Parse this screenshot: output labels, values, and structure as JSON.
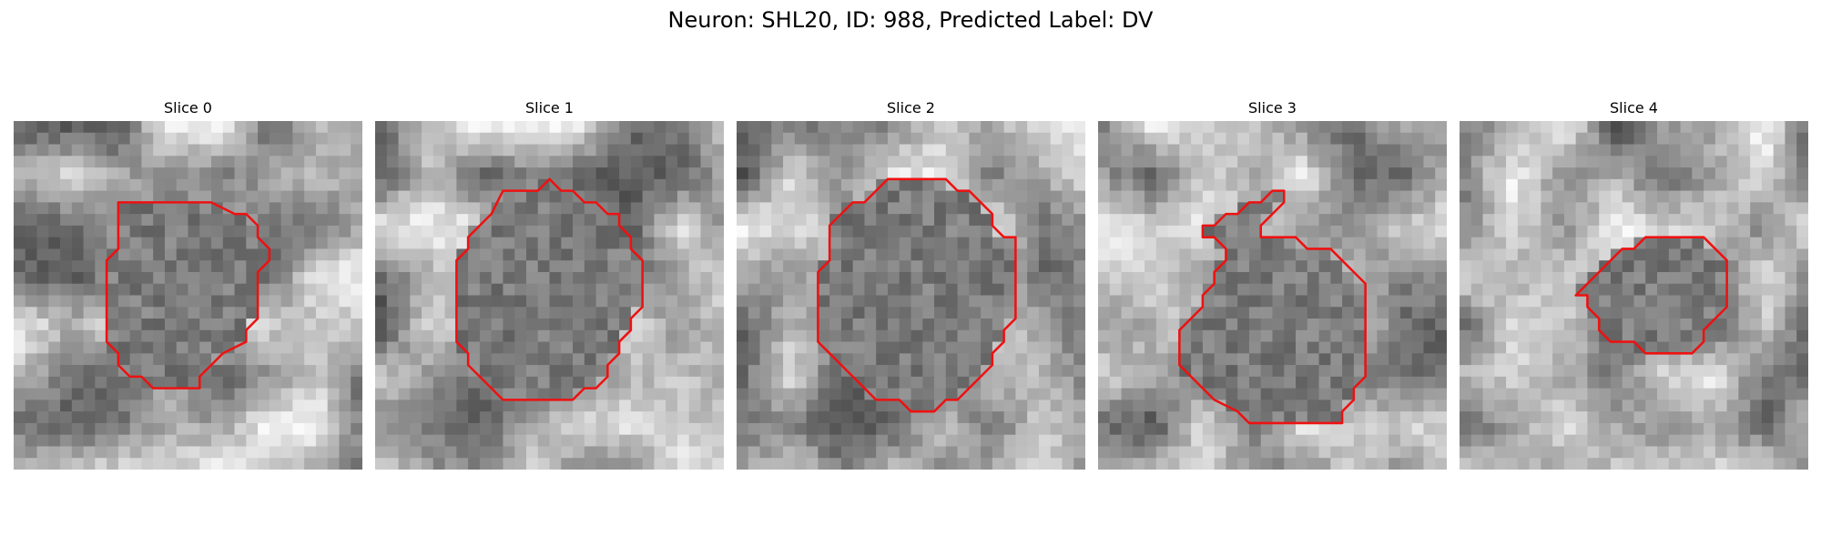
{
  "figure": {
    "title": "Neuron: SHL20, ID: 988, Predicted Label: DV",
    "contour_color": "#ee1111",
    "panels": [
      {
        "title": "Slice 0",
        "grid": 30,
        "contour": [
          [
            9,
            7
          ],
          [
            17,
            7
          ],
          [
            19,
            8
          ],
          [
            20,
            8
          ],
          [
            21,
            9
          ],
          [
            21,
            10
          ],
          [
            22,
            11
          ],
          [
            22,
            12
          ],
          [
            21,
            13
          ],
          [
            21,
            17
          ],
          [
            20,
            18
          ],
          [
            20,
            19
          ],
          [
            18,
            20
          ],
          [
            17,
            21
          ],
          [
            16,
            22
          ],
          [
            16,
            23
          ],
          [
            12,
            23
          ],
          [
            11,
            22
          ],
          [
            10,
            22
          ],
          [
            9,
            21
          ],
          [
            9,
            20
          ],
          [
            8,
            19
          ],
          [
            8,
            12
          ],
          [
            9,
            11
          ],
          [
            9,
            9
          ]
        ]
      },
      {
        "title": "Slice 1",
        "grid": 30,
        "contour": [
          [
            11,
            6
          ],
          [
            14,
            6
          ],
          [
            15,
            5
          ],
          [
            16,
            6
          ],
          [
            17,
            6
          ],
          [
            18,
            7
          ],
          [
            19,
            7
          ],
          [
            20,
            8
          ],
          [
            21,
            8
          ],
          [
            21,
            9
          ],
          [
            22,
            10
          ],
          [
            22,
            11
          ],
          [
            23,
            12
          ],
          [
            23,
            14
          ],
          [
            23,
            16
          ],
          [
            22,
            17
          ],
          [
            22,
            18
          ],
          [
            21,
            19
          ],
          [
            21,
            20
          ],
          [
            20,
            21
          ],
          [
            20,
            22
          ],
          [
            19,
            23
          ],
          [
            18,
            23
          ],
          [
            17,
            24
          ],
          [
            11,
            24
          ],
          [
            10,
            23
          ],
          [
            9,
            22
          ],
          [
            8,
            21
          ],
          [
            8,
            20
          ],
          [
            7,
            19
          ],
          [
            7,
            12
          ],
          [
            8,
            11
          ],
          [
            8,
            10
          ],
          [
            9,
            9
          ],
          [
            10,
            8
          ]
        ]
      },
      {
        "title": "Slice 2",
        "grid": 30,
        "contour": [
          [
            13,
            5
          ],
          [
            18,
            5
          ],
          [
            19,
            6
          ],
          [
            20,
            6
          ],
          [
            21,
            7
          ],
          [
            22,
            8
          ],
          [
            22,
            9
          ],
          [
            23,
            10
          ],
          [
            24,
            10
          ],
          [
            24,
            17
          ],
          [
            23,
            18
          ],
          [
            23,
            19
          ],
          [
            22,
            20
          ],
          [
            22,
            21
          ],
          [
            21,
            22
          ],
          [
            20,
            23
          ],
          [
            19,
            24
          ],
          [
            18,
            24
          ],
          [
            17,
            25
          ],
          [
            15,
            25
          ],
          [
            14,
            24
          ],
          [
            12,
            24
          ],
          [
            11,
            23
          ],
          [
            10,
            22
          ],
          [
            9,
            21
          ],
          [
            8,
            20
          ],
          [
            7,
            19
          ],
          [
            7,
            13
          ],
          [
            8,
            12
          ],
          [
            8,
            9
          ],
          [
            9,
            8
          ],
          [
            10,
            7
          ],
          [
            11,
            7
          ],
          [
            12,
            6
          ]
        ]
      },
      {
        "title": "Slice 3",
        "grid": 30,
        "contour": [
          [
            15,
            6
          ],
          [
            16,
            6
          ],
          [
            16,
            7
          ],
          [
            15,
            8
          ],
          [
            14,
            9
          ],
          [
            14,
            10
          ],
          [
            17,
            10
          ],
          [
            18,
            11
          ],
          [
            20,
            11
          ],
          [
            21,
            12
          ],
          [
            22,
            13
          ],
          [
            23,
            14
          ],
          [
            23,
            22
          ],
          [
            22,
            23
          ],
          [
            22,
            24
          ],
          [
            21,
            25
          ],
          [
            21,
            26
          ],
          [
            19,
            26
          ],
          [
            18,
            26
          ],
          [
            13,
            26
          ],
          [
            12,
            25
          ],
          [
            10,
            24
          ],
          [
            9,
            23
          ],
          [
            8,
            22
          ],
          [
            7,
            21
          ],
          [
            7,
            18
          ],
          [
            8,
            17
          ],
          [
            9,
            16
          ],
          [
            9,
            15
          ],
          [
            10,
            14
          ],
          [
            10,
            13
          ],
          [
            11,
            12
          ],
          [
            11,
            11
          ],
          [
            10,
            10
          ],
          [
            9,
            10
          ],
          [
            9,
            9
          ],
          [
            10,
            9
          ],
          [
            11,
            8
          ],
          [
            12,
            8
          ],
          [
            13,
            7
          ],
          [
            14,
            7
          ]
        ]
      },
      {
        "title": "Slice 4",
        "grid": 30,
        "contour": [
          [
            20,
            10
          ],
          [
            21,
            10
          ],
          [
            22,
            11
          ],
          [
            23,
            12
          ],
          [
            23,
            13
          ],
          [
            23,
            14
          ],
          [
            23,
            16
          ],
          [
            22,
            17
          ],
          [
            21,
            18
          ],
          [
            21,
            19
          ],
          [
            20,
            20
          ],
          [
            18,
            20
          ],
          [
            17,
            20
          ],
          [
            16,
            20
          ],
          [
            15,
            19
          ],
          [
            13,
            19
          ],
          [
            12,
            18
          ],
          [
            12,
            17
          ],
          [
            11,
            16
          ],
          [
            11,
            15
          ],
          [
            10,
            15
          ],
          [
            11,
            14
          ],
          [
            12,
            13
          ],
          [
            13,
            12
          ],
          [
            14,
            11
          ],
          [
            15,
            11
          ],
          [
            16,
            10
          ]
        ]
      }
    ]
  }
}
